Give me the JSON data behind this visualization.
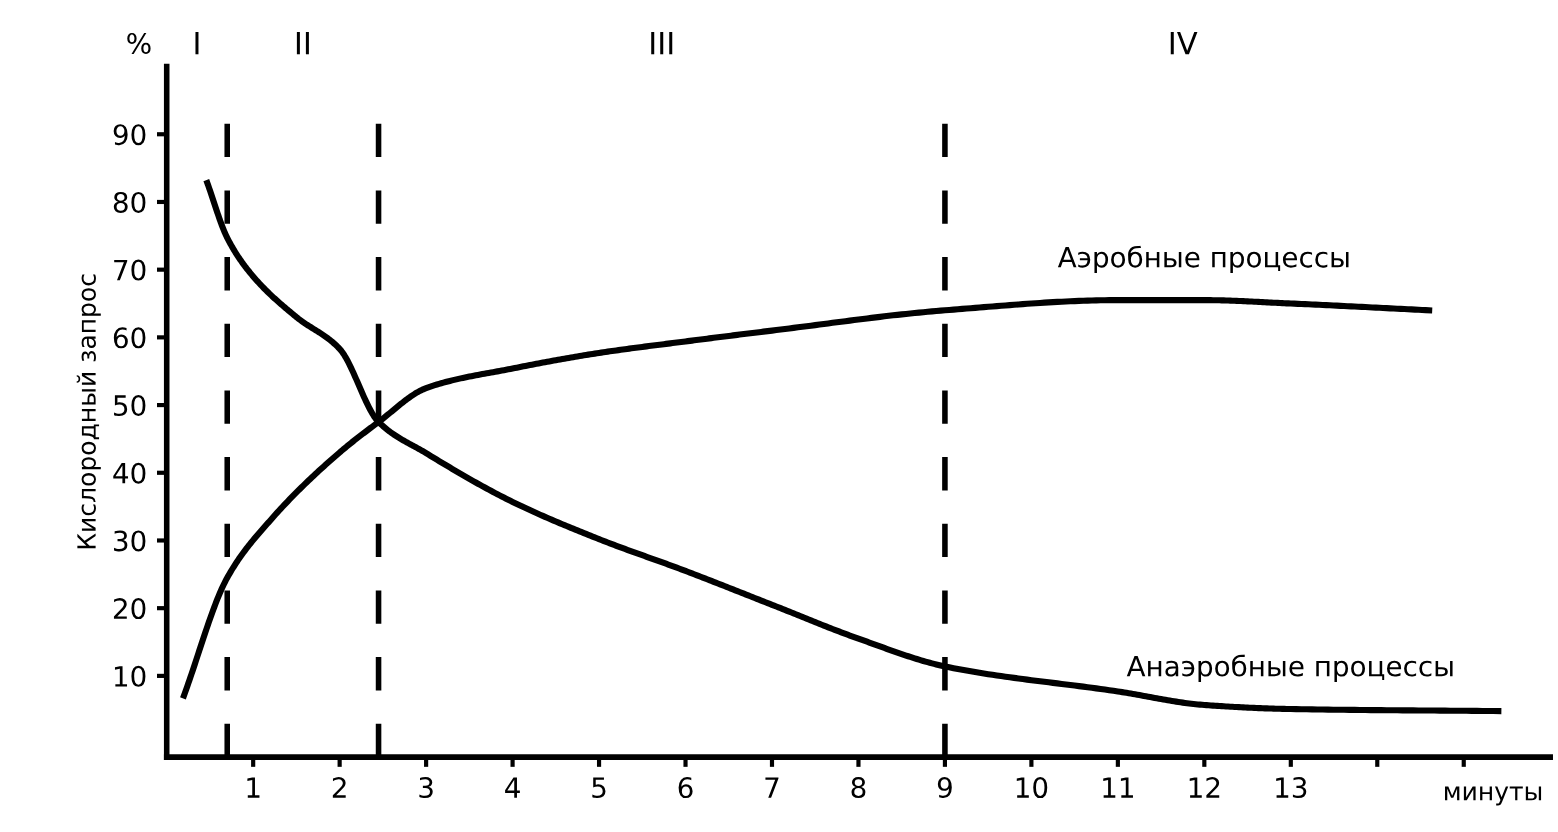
{
  "chart_data": {
    "type": "line",
    "ylabel": "Кислородный запрос",
    "xlabel": "минуты",
    "series": [
      {
        "name": "Аэробные процессы",
        "color": "#000000",
        "x": [
          0.2,
          0.7,
          1.2,
          2.0,
          2.45,
          3,
          4,
          5,
          6,
          7,
          9,
          11,
          12,
          13,
          14.6
        ],
        "values": [
          7.1,
          24.5,
          33,
          43,
          47.5,
          52.5,
          55.4,
          57.7,
          59.4,
          61,
          64,
          65.5,
          65.5,
          65,
          64
        ]
      },
      {
        "name": "Анаэробные процессы",
        "color": "#000000",
        "x": [
          0.47,
          0.7,
          1,
          1.5,
          2,
          2.45,
          3,
          4,
          5,
          6,
          7,
          8,
          9,
          11,
          12,
          13,
          15.4
        ],
        "values": [
          82.8,
          74.7,
          69,
          63,
          58.3,
          47.5,
          42.9,
          35.7,
          30.2,
          25.5,
          20.5,
          15.5,
          11.4,
          7.7,
          5.7,
          5.1,
          4.8
        ]
      }
    ],
    "xlim": [
      0,
      16
    ],
    "ylim": [
      -2,
      100
    ],
    "xticks": [
      1,
      2,
      3,
      4,
      5,
      6,
      7,
      8,
      9,
      10,
      11,
      12,
      13,
      {
        "value": 14,
        "label": null
      },
      {
        "value": 15,
        "label": null
      }
    ],
    "yticks": [
      10,
      20,
      30,
      40,
      50,
      60,
      70,
      80,
      90
    ],
    "ref_lines": [
      {
        "axis": "x",
        "value": 0.7,
        "color": "#000000",
        "line_style": "dashed"
      },
      {
        "axis": "x",
        "value": 2.45,
        "color": "#000000",
        "line_style": "dashed"
      },
      {
        "axis": "x",
        "value": 9,
        "color": "#000000",
        "line_style": "dashed"
      }
    ],
    "annotations": [
      "%",
      "I",
      "II",
      "III",
      "IV"
    ],
    "grid": false,
    "legend": false,
    "marker": "none",
    "line_style": "solid"
  }
}
